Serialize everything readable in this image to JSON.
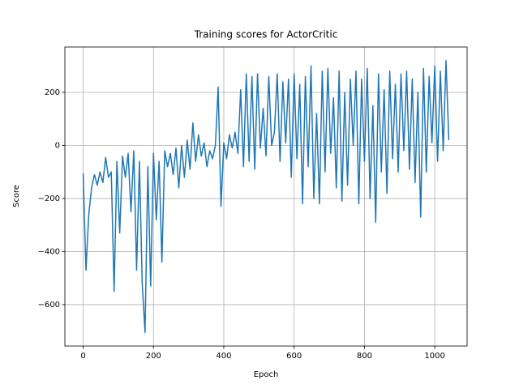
{
  "chart_data": {
    "type": "line",
    "title": "Training scores for ActorCritic",
    "xlabel": "Epoch",
    "ylabel": "Score",
    "color": "#1f77b4",
    "grid": true,
    "xlim": [
      -52,
      1092
    ],
    "ylim": [
      -756,
      371
    ],
    "xticks": [
      0,
      200,
      400,
      600,
      800,
      1000
    ],
    "yticks": [
      {
        "value": -600,
        "label": "−600"
      },
      {
        "value": -400,
        "label": "−400"
      },
      {
        "value": -200,
        "label": "−200"
      },
      0,
      200
    ],
    "x": [
      0,
      8,
      16,
      24,
      32,
      40,
      48,
      56,
      64,
      72,
      80,
      88,
      96,
      104,
      112,
      120,
      128,
      136,
      144,
      152,
      160,
      168,
      176,
      184,
      192,
      200,
      208,
      216,
      224,
      232,
      240,
      248,
      256,
      264,
      272,
      280,
      288,
      296,
      304,
      312,
      320,
      328,
      336,
      344,
      352,
      360,
      368,
      376,
      384,
      392,
      400,
      408,
      416,
      424,
      432,
      440,
      448,
      456,
      464,
      472,
      480,
      488,
      496,
      504,
      512,
      520,
      528,
      536,
      544,
      552,
      560,
      568,
      576,
      584,
      592,
      600,
      608,
      616,
      624,
      632,
      640,
      648,
      656,
      664,
      672,
      680,
      688,
      696,
      704,
      712,
      720,
      728,
      736,
      744,
      752,
      760,
      768,
      776,
      784,
      792,
      800,
      808,
      816,
      824,
      832,
      840,
      848,
      856,
      864,
      872,
      880,
      888,
      896,
      904,
      912,
      920,
      928,
      936,
      944,
      952,
      960,
      968,
      976,
      984,
      992,
      1000,
      1008,
      1016,
      1024,
      1032,
      1040
    ],
    "values": [
      -105,
      -470,
      -260,
      -160,
      -110,
      -150,
      -100,
      -140,
      -45,
      -120,
      -100,
      -550,
      -60,
      -330,
      -40,
      -120,
      -30,
      -250,
      -20,
      -470,
      -60,
      -520,
      -705,
      -80,
      -530,
      -30,
      -280,
      -60,
      -440,
      -20,
      -80,
      -30,
      -110,
      -10,
      -160,
      0,
      -120,
      20,
      -90,
      85,
      -60,
      40,
      -40,
      10,
      -80,
      -20,
      -50,
      0,
      220,
      -230,
      10,
      -50,
      40,
      -10,
      50,
      -30,
      210,
      -80,
      270,
      -60,
      260,
      -90,
      270,
      -10,
      140,
      -40,
      260,
      0,
      50,
      270,
      -60,
      240,
      10,
      250,
      -120,
      270,
      -50,
      230,
      -220,
      260,
      -80,
      300,
      -200,
      120,
      -220,
      280,
      -100,
      290,
      -30,
      180,
      -160,
      280,
      -210,
      200,
      -150,
      250,
      0,
      280,
      -220,
      250,
      -60,
      290,
      -200,
      150,
      -290,
      270,
      -100,
      210,
      -180,
      280,
      -50,
      230,
      -100,
      270,
      -20,
      280,
      -90,
      250,
      -140,
      200,
      -270,
      290,
      -100,
      260,
      10,
      300,
      -60,
      280,
      -20,
      320,
      20
    ]
  }
}
